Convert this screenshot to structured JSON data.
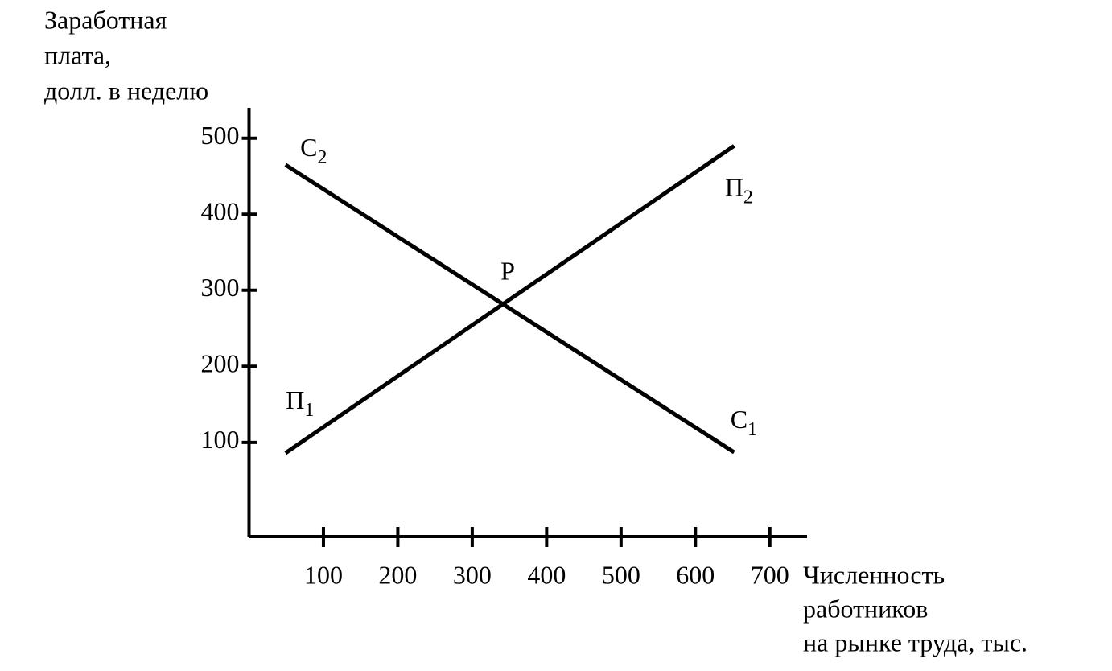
{
  "chart_data": {
    "type": "line",
    "y_label": [
      "Заработная",
      "плата,",
      "долл. в неделю"
    ],
    "x_label": [
      "Численность",
      "работников",
      "на рынке труда, тыс."
    ],
    "xlim": [
      0,
      750
    ],
    "ylim": [
      -24,
      540
    ],
    "xticks": [
      100,
      200,
      300,
      400,
      500,
      600,
      700
    ],
    "yticks": [
      100,
      200,
      300,
      400,
      500
    ],
    "series": [
      {
        "color": "#000000",
        "x": [
          49,
          652
        ],
        "values": [
          86,
          490
        ],
        "start_label": {
          "text": "П",
          "sub": "1"
        },
        "end_label": {
          "text": "П",
          "sub": "2"
        }
      },
      {
        "color": "#000000",
        "x": [
          49,
          652
        ],
        "values": [
          465,
          87
        ],
        "start_label": {
          "text": "C",
          "sub": "2"
        },
        "end_label": {
          "text": "C",
          "sub": "1"
        }
      }
    ],
    "intersection_label": "P"
  }
}
